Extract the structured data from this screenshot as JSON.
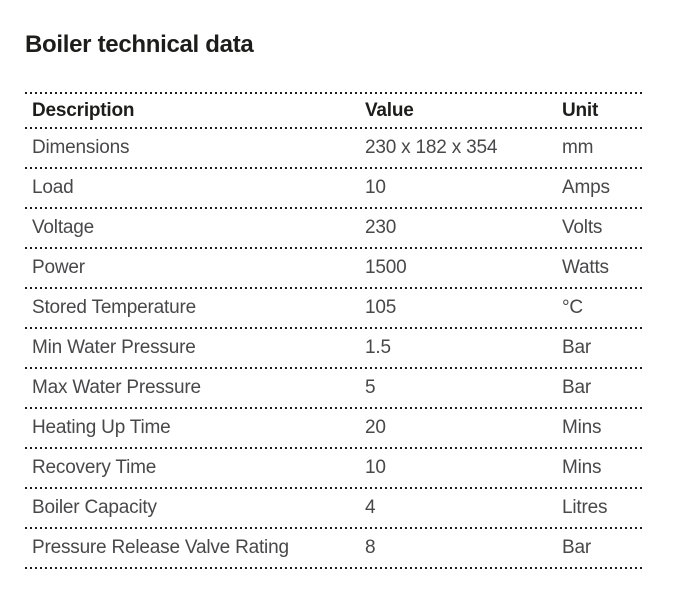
{
  "page_title": "Boiler technical data",
  "colors": {
    "title_text": "#1d1d1b",
    "header_text": "#1d1d1b",
    "row_text": "#48484a",
    "dotted_line": "#1d1d1b",
    "background": "#ffffff"
  },
  "table": {
    "columns": [
      {
        "key": "description",
        "label": "Description"
      },
      {
        "key": "value",
        "label": "Value"
      },
      {
        "key": "unit",
        "label": "Unit"
      }
    ],
    "rows": [
      {
        "description": "Dimensions",
        "value": "230 x 182 x 354",
        "unit": "mm"
      },
      {
        "description": "Load",
        "value": "10",
        "unit": "Amps"
      },
      {
        "description": "Voltage",
        "value": "230",
        "unit": "Volts"
      },
      {
        "description": "Power",
        "value": "1500",
        "unit": "Watts"
      },
      {
        "description": "Stored Temperature",
        "value": "105",
        "unit": "°C"
      },
      {
        "description": "Min Water Pressure",
        "value": "1.5",
        "unit": "Bar"
      },
      {
        "description": "Max Water Pressure",
        "value": "5",
        "unit": "Bar"
      },
      {
        "description": "Heating Up Time",
        "value": "20",
        "unit": "Mins"
      },
      {
        "description": "Recovery Time",
        "value": "10",
        "unit": "Mins"
      },
      {
        "description": "Boiler Capacity",
        "value": "4",
        "unit": "Litres"
      },
      {
        "description": "Pressure Release Valve Rating",
        "value": "8",
        "unit": "Bar"
      }
    ]
  }
}
